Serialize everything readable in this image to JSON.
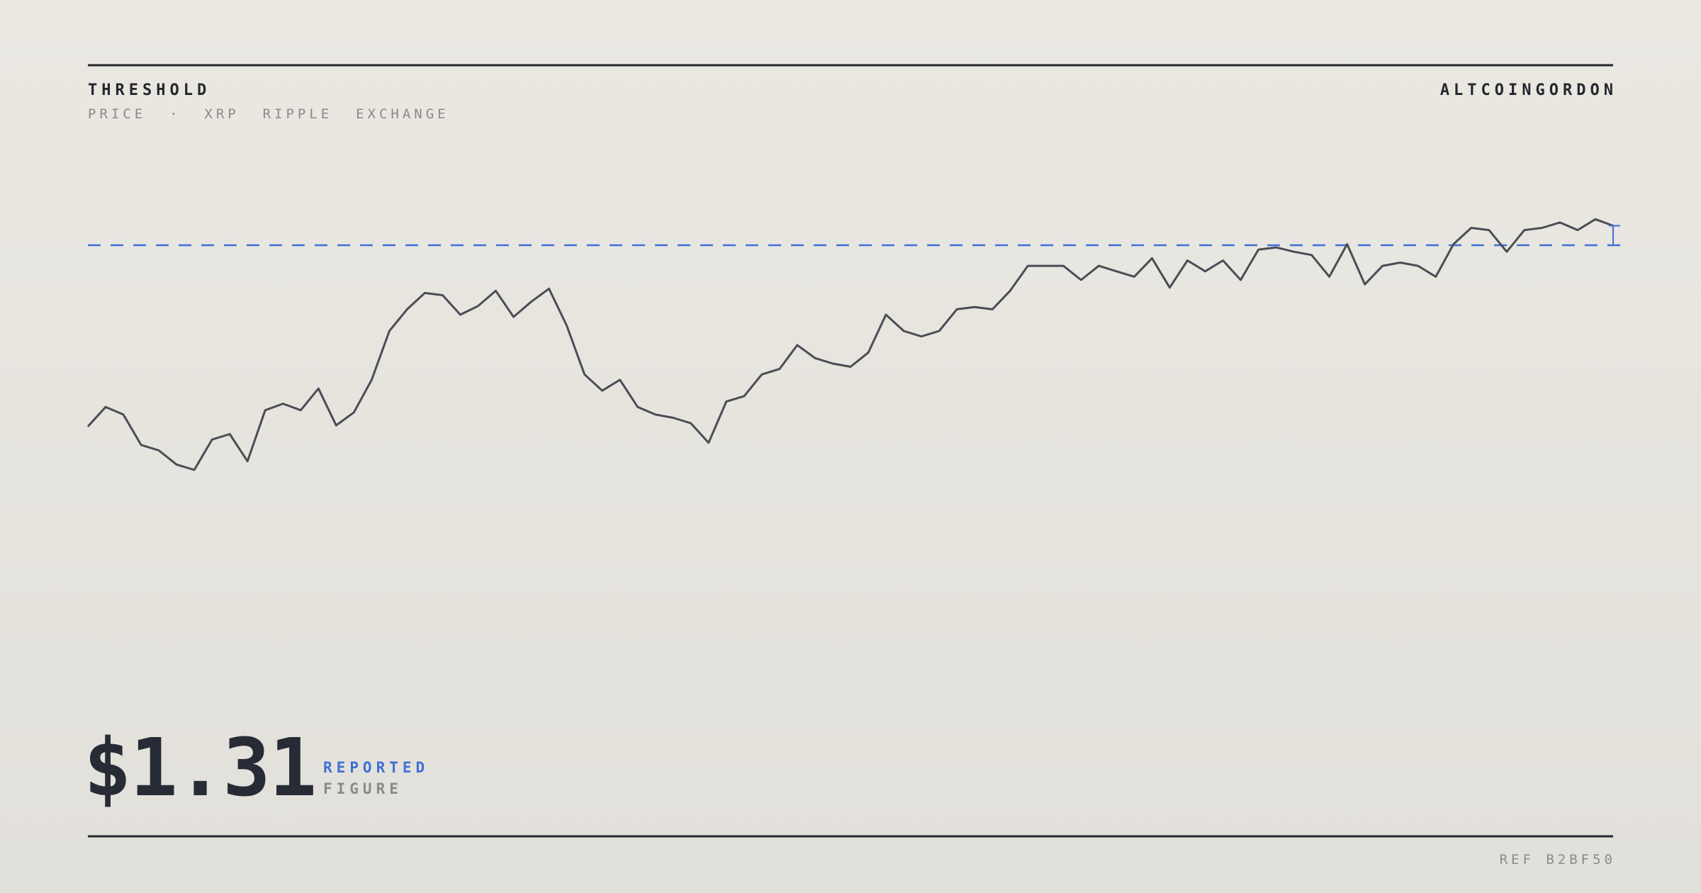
{
  "chart_data": {
    "type": "line",
    "title": "THRESHOLD",
    "subtitle": "PRICE  ·  XRP  RIPPLE  EXCHANGE",
    "brand": "ALTCOINGORDON",
    "figure": "$1.31",
    "figure_label_top": "REPORTED",
    "figure_label_bottom": "FIGURE",
    "reference": "REF B2BF50",
    "color": "#4a4d55",
    "threshold": 1.31,
    "threshold_color": "#3f6fd8",
    "ylim": [
      0.2,
      1.6
    ],
    "values": [
      0.642,
      0.714,
      0.686,
      0.574,
      0.554,
      0.502,
      0.482,
      0.594,
      0.614,
      0.514,
      0.702,
      0.726,
      0.702,
      0.782,
      0.646,
      0.694,
      0.814,
      0.994,
      1.074,
      1.134,
      1.126,
      1.054,
      1.086,
      1.142,
      1.046,
      1.102,
      1.15,
      1.014,
      0.834,
      0.774,
      0.814,
      0.714,
      0.686,
      0.674,
      0.654,
      0.582,
      0.734,
      0.754,
      0.834,
      0.854,
      0.942,
      0.894,
      0.874,
      0.862,
      0.914,
      1.054,
      0.994,
      0.974,
      0.994,
      1.074,
      1.082,
      1.074,
      1.142,
      1.234,
      1.234,
      1.234,
      1.182,
      1.234,
      1.214,
      1.194,
      1.262,
      1.154,
      1.254,
      1.214,
      1.254,
      1.182,
      1.294,
      1.302,
      1.286,
      1.274,
      1.194,
      1.314,
      1.166,
      1.234,
      1.246,
      1.234,
      1.194,
      1.314,
      1.374,
      1.366,
      1.286,
      1.366,
      1.374,
      1.394,
      1.366,
      1.406,
      1.382
    ]
  }
}
